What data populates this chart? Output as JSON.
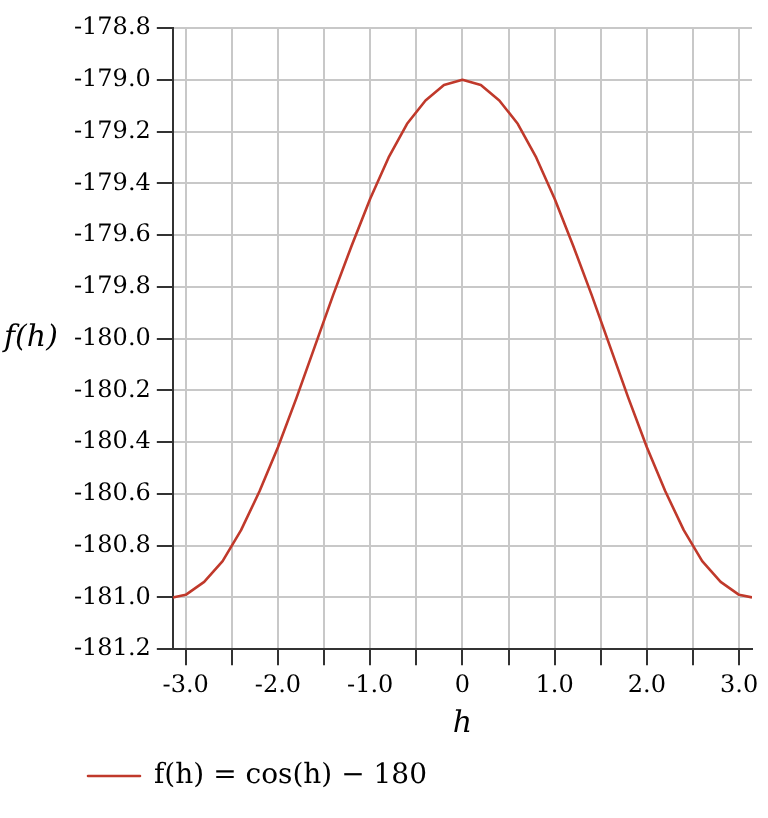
{
  "chart_data": {
    "type": "line",
    "xlabel": "h",
    "ylabel": "f(h)",
    "x": [
      -3.14,
      -3.0,
      -2.8,
      -2.6,
      -2.4,
      -2.2,
      -2.0,
      -1.8,
      -1.6,
      -1.4,
      -1.2,
      -1.0,
      -0.8,
      -0.6,
      -0.4,
      -0.2,
      0,
      0.2,
      0.4,
      0.6,
      0.8,
      1.0,
      1.2,
      1.4,
      1.6,
      1.8,
      2.0,
      2.2,
      2.4,
      2.6,
      2.8,
      3.0,
      3.14
    ],
    "series": [
      {
        "name": "f(h) = cos(h) − 180",
        "color": "#c0392b",
        "values": [
          -181.0,
          -180.99,
          -180.94,
          -180.86,
          -180.74,
          -180.59,
          -180.42,
          -180.23,
          -180.03,
          -179.83,
          -179.64,
          -179.46,
          -179.3,
          -179.17,
          -179.08,
          -179.02,
          -179.0,
          -179.02,
          -179.08,
          -179.17,
          -179.3,
          -179.46,
          -179.64,
          -179.83,
          -180.03,
          -180.23,
          -180.42,
          -180.59,
          -180.74,
          -180.86,
          -180.94,
          -180.99,
          -181.0
        ]
      }
    ],
    "xlim": [
      -3.14,
      3.14
    ],
    "xticks": [
      {
        "value": -3.0,
        "label": "-3.0"
      },
      {
        "value": -2.5,
        "label": null
      },
      {
        "value": -2.0,
        "label": "-2.0"
      },
      {
        "value": -1.5,
        "label": null
      },
      {
        "value": -1.0,
        "label": "-1.0"
      },
      {
        "value": -0.5,
        "label": null
      },
      0,
      {
        "value": 0.5,
        "label": null
      },
      {
        "value": 1.0,
        "label": "1.0"
      },
      {
        "value": 1.5,
        "label": null
      },
      {
        "value": 2.0,
        "label": "2.0"
      },
      {
        "value": 2.5,
        "label": null
      },
      {
        "value": 3.0,
        "label": "3.0"
      }
    ],
    "ylim": [
      -181.2,
      -178.8
    ],
    "yticks": [
      {
        "value": -181.2,
        "label": "-181.2"
      },
      {
        "value": -181.0,
        "label": "-181.0"
      },
      {
        "value": -180.8,
        "label": "-180.8"
      },
      {
        "value": -180.6,
        "label": "-180.6"
      },
      {
        "value": -180.4,
        "label": "-180.4"
      },
      {
        "value": -180.2,
        "label": "-180.2"
      },
      {
        "value": -180.0,
        "label": "-180.0"
      },
      {
        "value": -179.8,
        "label": "-179.8"
      },
      {
        "value": -179.6,
        "label": "-179.6"
      },
      {
        "value": -179.4,
        "label": "-179.4"
      },
      {
        "value": -179.2,
        "label": "-179.2"
      },
      {
        "value": -179.0,
        "label": "-179.0"
      },
      {
        "value": -178.8,
        "label": "-178.8"
      }
    ],
    "grid": true,
    "legend": "bottom left",
    "marker": "none",
    "line_style": "solid"
  }
}
